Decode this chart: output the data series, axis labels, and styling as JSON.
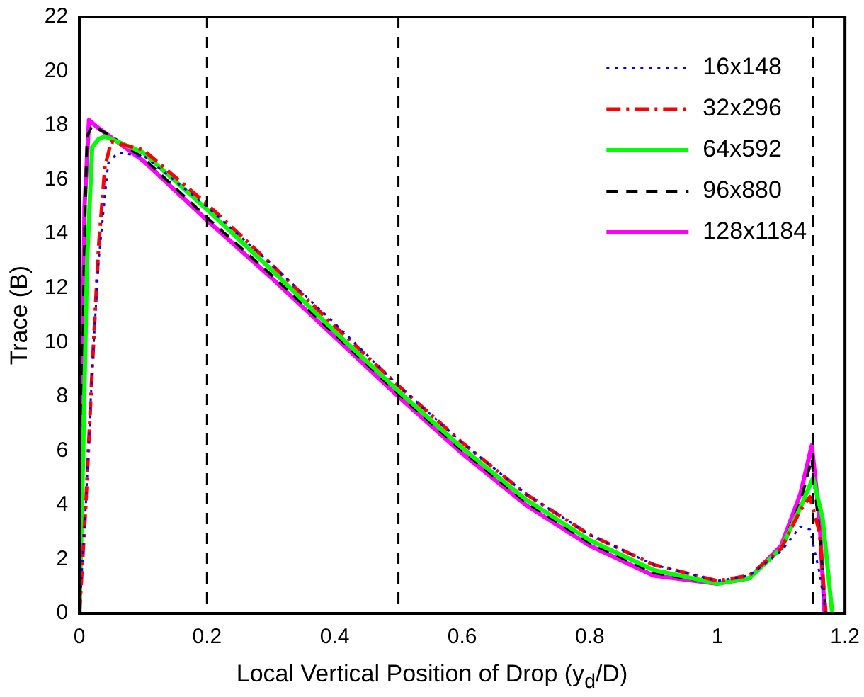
{
  "chart_data": {
    "type": "line",
    "xlabel": "Local Vertical Position of Drop (y$_{d}$/D)",
    "ylabel": "Trace (B)",
    "xlim": [
      0,
      1.2
    ],
    "xticks": [
      0,
      0.2,
      0.4,
      0.6,
      0.8,
      1,
      1.2
    ],
    "ylim": [
      0,
      22
    ],
    "yticks": [
      0,
      2,
      4,
      6,
      8,
      10,
      12,
      14,
      16,
      18,
      20,
      22
    ],
    "grid": false,
    "legend": "top right",
    "marker": "none",
    "ref_lines": [
      {
        "axis": "x",
        "value": 0.2,
        "color": "#000000",
        "line_style": "dashed"
      },
      {
        "axis": "x",
        "value": 0.5,
        "color": "#000000",
        "line_style": "dashed"
      },
      {
        "axis": "x",
        "value": 1.15,
        "color": "#000000",
        "line_style": "dashed"
      }
    ],
    "series": [
      {
        "name": "16x148",
        "color": "#0000ff",
        "line_style": "dotted",
        "x": [
          0,
          0.01,
          0.02,
          0.03,
          0.045,
          0.06,
          0.09,
          0.1,
          0.2,
          0.3,
          0.4,
          0.5,
          0.6,
          0.7,
          0.8,
          0.9,
          1,
          1.05,
          1.1,
          1.13,
          1.145,
          1.16,
          1.17
        ],
        "values": [
          0,
          4,
          9,
          13,
          16.6,
          17,
          16.9,
          16.9,
          15,
          12.9,
          10.7,
          8.4,
          6.3,
          4.4,
          2.9,
          1.8,
          1.2,
          1.4,
          2.3,
          3.2,
          3.1,
          1.5,
          0
        ]
      },
      {
        "name": "32x296",
        "color": "#ff0000",
        "line_style": "dashdot",
        "x": [
          0,
          0.01,
          0.02,
          0.03,
          0.04,
          0.05,
          0.1,
          0.2,
          0.3,
          0.4,
          0.5,
          0.6,
          0.7,
          0.8,
          0.9,
          1,
          1.05,
          1.1,
          1.13,
          1.145,
          1.16,
          1.17
        ],
        "values": [
          0,
          4,
          9,
          13.5,
          16.5,
          17.4,
          17.1,
          15.1,
          12.9,
          10.6,
          8.4,
          6.3,
          4.4,
          2.9,
          1.8,
          1.2,
          1.4,
          2.4,
          3.8,
          4.3,
          3,
          0
        ]
      },
      {
        "name": "64x592",
        "color": "#00ff00",
        "line_style": "solid",
        "x": [
          0,
          0.005,
          0.012,
          0.02,
          0.03,
          0.04,
          0.1,
          0.2,
          0.3,
          0.4,
          0.5,
          0.6,
          0.7,
          0.8,
          0.9,
          1,
          1.05,
          1.1,
          1.13,
          1.15,
          1.165,
          1.18
        ],
        "values": [
          0,
          5,
          13,
          17.2,
          17.5,
          17.6,
          17,
          14.9,
          12.7,
          10.4,
          8.2,
          6.1,
          4.2,
          2.7,
          1.6,
          1.1,
          1.3,
          2.4,
          3.9,
          5,
          3.5,
          0
        ]
      },
      {
        "name": "96x880",
        "color": "#000000",
        "line_style": "dashed",
        "x": [
          0,
          0.003,
          0.008,
          0.012,
          0.02,
          0.05,
          0.1,
          0.2,
          0.3,
          0.4,
          0.5,
          0.6,
          0.7,
          0.8,
          0.9,
          1,
          1.05,
          1.1,
          1.13,
          1.148,
          1.16,
          1.17
        ],
        "values": [
          0,
          6,
          14,
          17.6,
          18,
          17.6,
          16.8,
          14.6,
          12.5,
          10.3,
          8.1,
          6,
          4.1,
          2.6,
          1.5,
          1.1,
          1.3,
          2.4,
          4.1,
          5.7,
          3,
          0
        ]
      },
      {
        "name": "128x1184",
        "color": "#ff00ff",
        "line_style": "solid",
        "x": [
          0,
          0.003,
          0.008,
          0.015,
          0.03,
          0.1,
          0.2,
          0.3,
          0.4,
          0.5,
          0.6,
          0.7,
          0.8,
          0.9,
          1,
          1.05,
          1.1,
          1.13,
          1.148,
          1.16,
          1.168
        ],
        "values": [
          0,
          6,
          15,
          18.2,
          17.9,
          16.7,
          14.5,
          12.4,
          10.2,
          8,
          5.9,
          4,
          2.5,
          1.4,
          1.1,
          1.3,
          2.5,
          4.4,
          6.2,
          3.5,
          0
        ]
      }
    ]
  }
}
